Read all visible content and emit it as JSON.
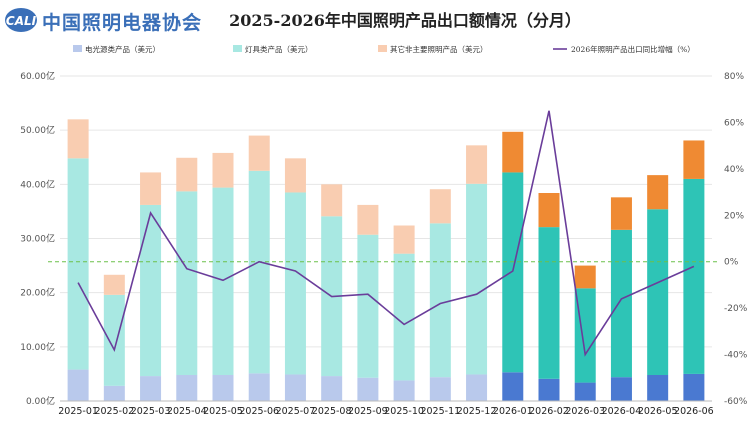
{
  "header": {
    "logo_text": "中国照明电器协会",
    "title": "2025-2026年中国照明产品出口额情况（分月）"
  },
  "chart_data": {
    "type": "bar",
    "stacked": true,
    "categories": [
      "2025-01",
      "2025-02",
      "2025-03",
      "2025-04",
      "2025-05",
      "2025-06",
      "2025-07",
      "2025-08",
      "2025-09",
      "2025-10",
      "2025-11",
      "2025-12",
      "2026-01",
      "2026-02",
      "2026-03",
      "2026-04",
      "2026-05",
      "2026-06"
    ],
    "series": [
      {
        "name": "电光源类产品（美元）",
        "kind": "bar",
        "values": [
          5.8,
          2.8,
          4.6,
          4.8,
          4.8,
          5.1,
          4.9,
          4.6,
          4.3,
          3.8,
          4.4,
          4.9,
          5.3,
          4.1,
          3.4,
          4.4,
          4.8,
          5.0
        ]
      },
      {
        "name": "灯具类产品（美元）",
        "kind": "bar",
        "values": [
          39.0,
          16.8,
          31.6,
          33.9,
          34.6,
          37.4,
          33.6,
          29.5,
          26.4,
          23.4,
          28.4,
          35.2,
          36.9,
          28.0,
          17.4,
          27.2,
          30.6,
          36.0
        ]
      },
      {
        "name": "其它非主要照明产品（美元）",
        "kind": "bar",
        "values": [
          7.2,
          3.7,
          6.0,
          6.2,
          6.4,
          6.5,
          6.3,
          5.9,
          5.5,
          5.2,
          6.3,
          7.1,
          7.5,
          6.3,
          4.2,
          6.0,
          6.3,
          7.1
        ]
      },
      {
        "name": "2026年照明产品出口同比增幅（%）",
        "kind": "line",
        "axis": "right",
        "values": [
          -9,
          -38,
          21,
          -3,
          -8,
          0,
          -4,
          -15,
          -14,
          -27,
          -18,
          -14,
          -4,
          65,
          -40,
          -16,
          -9,
          -2
        ]
      }
    ],
    "colors_2025": [
      "#b9c9ec",
      "#a8e8e2",
      "#f9cdb1"
    ],
    "colors_2026": [
      "#4a79d1",
      "#2ec4b6",
      "#ef8a33"
    ],
    "line_color": "#6a3d9a",
    "zero_line_color": "#6cc04a",
    "ylim_left": [
      0,
      60
    ],
    "yticks_left": [
      "0.00亿",
      "10.00亿",
      "20.00亿",
      "30.00亿",
      "40.00亿",
      "50.00亿",
      "60.00亿"
    ],
    "ylim_right": [
      -60,
      80
    ],
    "yticks_right": [
      "-60%",
      "-40%",
      "-20%",
      "0%",
      "20%",
      "40%",
      "60%",
      "80%"
    ],
    "grid": true,
    "legend_position": "top"
  }
}
